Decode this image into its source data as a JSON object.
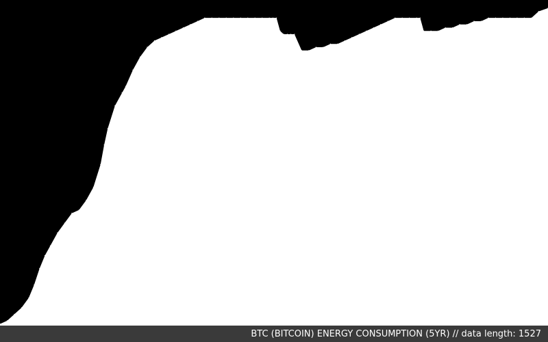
{
  "caption": "BTC (BITCOIN) ENERGY CONSUMPTION (5YR) // data length: 1527",
  "colors": {
    "background": "#000000",
    "area_fill": "#ffffff",
    "caption_bar": "#3a3a3a",
    "caption_text": "#ffffff"
  },
  "chart_data": {
    "type": "area",
    "title": "BTC (BITCOIN) ENERGY CONSUMPTION (5YR)",
    "data_length": 1527,
    "xlabel": "",
    "ylabel": "",
    "axes_shown": false,
    "grid": false,
    "legend": "none",
    "x_range": [
      0,
      1526
    ],
    "y_range": [
      0,
      100
    ],
    "series": [
      {
        "x": [
          0,
          20,
          40,
          60,
          80,
          95,
          110,
          125,
          140,
          160,
          180,
          200,
          220,
          240,
          260,
          280,
          290,
          300,
          320,
          340,
          350,
          370,
          390,
          410,
          430,
          450,
          470,
          490,
          510,
          530,
          550,
          570,
          590,
          610,
          630,
          650,
          670,
          690,
          710,
          730,
          750,
          760,
          770,
          780,
          790,
          800,
          810,
          820,
          840,
          860,
          880,
          900,
          920,
          940,
          960,
          980,
          1000,
          1020,
          1040,
          1060,
          1080,
          1100,
          1120,
          1140,
          1160,
          1170,
          1180,
          1200,
          1220,
          1240,
          1260,
          1280,
          1300,
          1320,
          1340,
          1360,
          1380,
          1400,
          1420,
          1440,
          1460,
          1480,
          1500,
          1526
        ],
        "y": [
          0.5,
          1.5,
          3.5,
          5.5,
          8.5,
          12.5,
          17.5,
          21.5,
          24.5,
          28.5,
          31.5,
          34.5,
          35.5,
          38.5,
          42.5,
          49.5,
          55.5,
          60.5,
          67.5,
          71.5,
          73.5,
          78.5,
          82.5,
          85.5,
          87.5,
          88.5,
          89.5,
          90.5,
          91.5,
          92.5,
          93.5,
          94.5,
          94.5,
          94.5,
          94.5,
          94.5,
          94.5,
          94.5,
          94.5,
          94.5,
          94.5,
          94.5,
          94.5,
          90.5,
          89.5,
          89.5,
          89.5,
          89.5,
          84.5,
          84.5,
          85.5,
          85.5,
          86.5,
          86.5,
          87.5,
          88.5,
          89.5,
          90.5,
          91.5,
          92.5,
          93.5,
          94.5,
          94.5,
          94.5,
          94.5,
          94.5,
          90.5,
          90.5,
          90.5,
          91.5,
          91.5,
          92.5,
          92.5,
          93.5,
          93.5,
          94.5,
          94.5,
          94.5,
          94.5,
          94.5,
          94.5,
          94.5,
          96.5,
          97.5
        ]
      }
    ]
  }
}
